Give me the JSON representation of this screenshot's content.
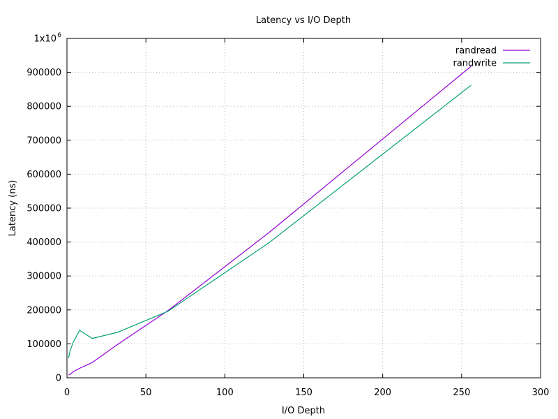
{
  "chart_data": {
    "type": "line",
    "title": "Latency vs I/O Depth",
    "xlabel": "I/O Depth",
    "ylabel": "Latency (ns)",
    "xlim": [
      0,
      300
    ],
    "ylim": [
      0,
      1000000
    ],
    "xticks": [
      0,
      50,
      100,
      150,
      200,
      250,
      300
    ],
    "yticks": [
      0,
      100000,
      200000,
      300000,
      400000,
      500000,
      600000,
      700000,
      800000,
      900000,
      1000000
    ],
    "ytick_labels": [
      "0",
      "100000",
      "200000",
      "300000",
      "400000",
      "500000",
      "600000",
      "700000",
      "800000",
      "900000",
      "1x10"
    ],
    "ytick_top_exponent": "6",
    "grid": true,
    "legend_position": "top-right",
    "series": [
      {
        "name": "randread",
        "color": "#9400d3",
        "x": [
          1,
          2,
          4,
          8,
          16,
          32,
          64,
          128,
          256
        ],
        "y": [
          8000,
          10000,
          18000,
          28000,
          45000,
          98000,
          198000,
          428000,
          918000
        ]
      },
      {
        "name": "randwrite",
        "color": "#009e73",
        "x": [
          1,
          2,
          4,
          8,
          16,
          32,
          64,
          128,
          256
        ],
        "y": [
          58000,
          80000,
          105000,
          140000,
          116000,
          134000,
          196000,
          398000,
          862000
        ]
      }
    ]
  }
}
